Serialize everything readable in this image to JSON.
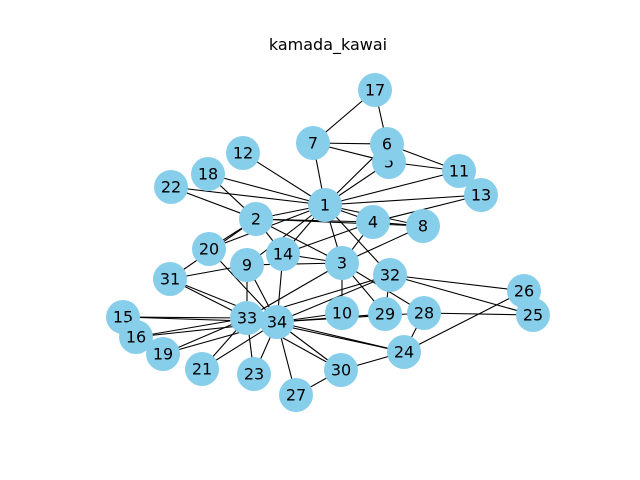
{
  "title": "kamada_kawai",
  "node_color": "#87CEEB",
  "edge_color": "#000000",
  "nodes": [
    "1",
    "2",
    "3",
    "4",
    "5",
    "6",
    "7",
    "8",
    "9",
    "10",
    "11",
    "12",
    "13",
    "14",
    "15",
    "16",
    "17",
    "18",
    "19",
    "20",
    "21",
    "22",
    "23",
    "24",
    "25",
    "26",
    "27",
    "28",
    "29",
    "30",
    "31",
    "32",
    "33",
    "34"
  ],
  "edges": [
    [
      "1",
      "2"
    ],
    [
      "1",
      "3"
    ],
    [
      "1",
      "4"
    ],
    [
      "1",
      "5"
    ],
    [
      "1",
      "6"
    ],
    [
      "1",
      "7"
    ],
    [
      "1",
      "8"
    ],
    [
      "1",
      "9"
    ],
    [
      "1",
      "11"
    ],
    [
      "1",
      "12"
    ],
    [
      "1",
      "13"
    ],
    [
      "1",
      "14"
    ],
    [
      "1",
      "18"
    ],
    [
      "1",
      "20"
    ],
    [
      "1",
      "22"
    ],
    [
      "1",
      "32"
    ],
    [
      "2",
      "3"
    ],
    [
      "2",
      "4"
    ],
    [
      "2",
      "8"
    ],
    [
      "2",
      "14"
    ],
    [
      "2",
      "18"
    ],
    [
      "2",
      "20"
    ],
    [
      "2",
      "22"
    ],
    [
      "2",
      "31"
    ],
    [
      "3",
      "4"
    ],
    [
      "3",
      "8"
    ],
    [
      "3",
      "9"
    ],
    [
      "3",
      "10"
    ],
    [
      "3",
      "14"
    ],
    [
      "3",
      "28"
    ],
    [
      "3",
      "29"
    ],
    [
      "3",
      "33"
    ],
    [
      "4",
      "8"
    ],
    [
      "4",
      "13"
    ],
    [
      "4",
      "14"
    ],
    [
      "5",
      "7"
    ],
    [
      "5",
      "11"
    ],
    [
      "6",
      "7"
    ],
    [
      "6",
      "11"
    ],
    [
      "6",
      "17"
    ],
    [
      "7",
      "17"
    ],
    [
      "9",
      "31"
    ],
    [
      "9",
      "33"
    ],
    [
      "9",
      "34"
    ],
    [
      "10",
      "34"
    ],
    [
      "14",
      "34"
    ],
    [
      "15",
      "33"
    ],
    [
      "15",
      "34"
    ],
    [
      "16",
      "33"
    ],
    [
      "16",
      "34"
    ],
    [
      "19",
      "33"
    ],
    [
      "19",
      "34"
    ],
    [
      "20",
      "34"
    ],
    [
      "21",
      "33"
    ],
    [
      "21",
      "34"
    ],
    [
      "23",
      "33"
    ],
    [
      "23",
      "34"
    ],
    [
      "24",
      "26"
    ],
    [
      "24",
      "28"
    ],
    [
      "24",
      "30"
    ],
    [
      "24",
      "33"
    ],
    [
      "24",
      "34"
    ],
    [
      "25",
      "26"
    ],
    [
      "25",
      "28"
    ],
    [
      "25",
      "32"
    ],
    [
      "26",
      "32"
    ],
    [
      "27",
      "30"
    ],
    [
      "27",
      "34"
    ],
    [
      "28",
      "34"
    ],
    [
      "29",
      "32"
    ],
    [
      "29",
      "34"
    ],
    [
      "30",
      "33"
    ],
    [
      "30",
      "34"
    ],
    [
      "31",
      "33"
    ],
    [
      "31",
      "34"
    ],
    [
      "32",
      "33"
    ],
    [
      "32",
      "34"
    ],
    [
      "33",
      "34"
    ]
  ]
}
